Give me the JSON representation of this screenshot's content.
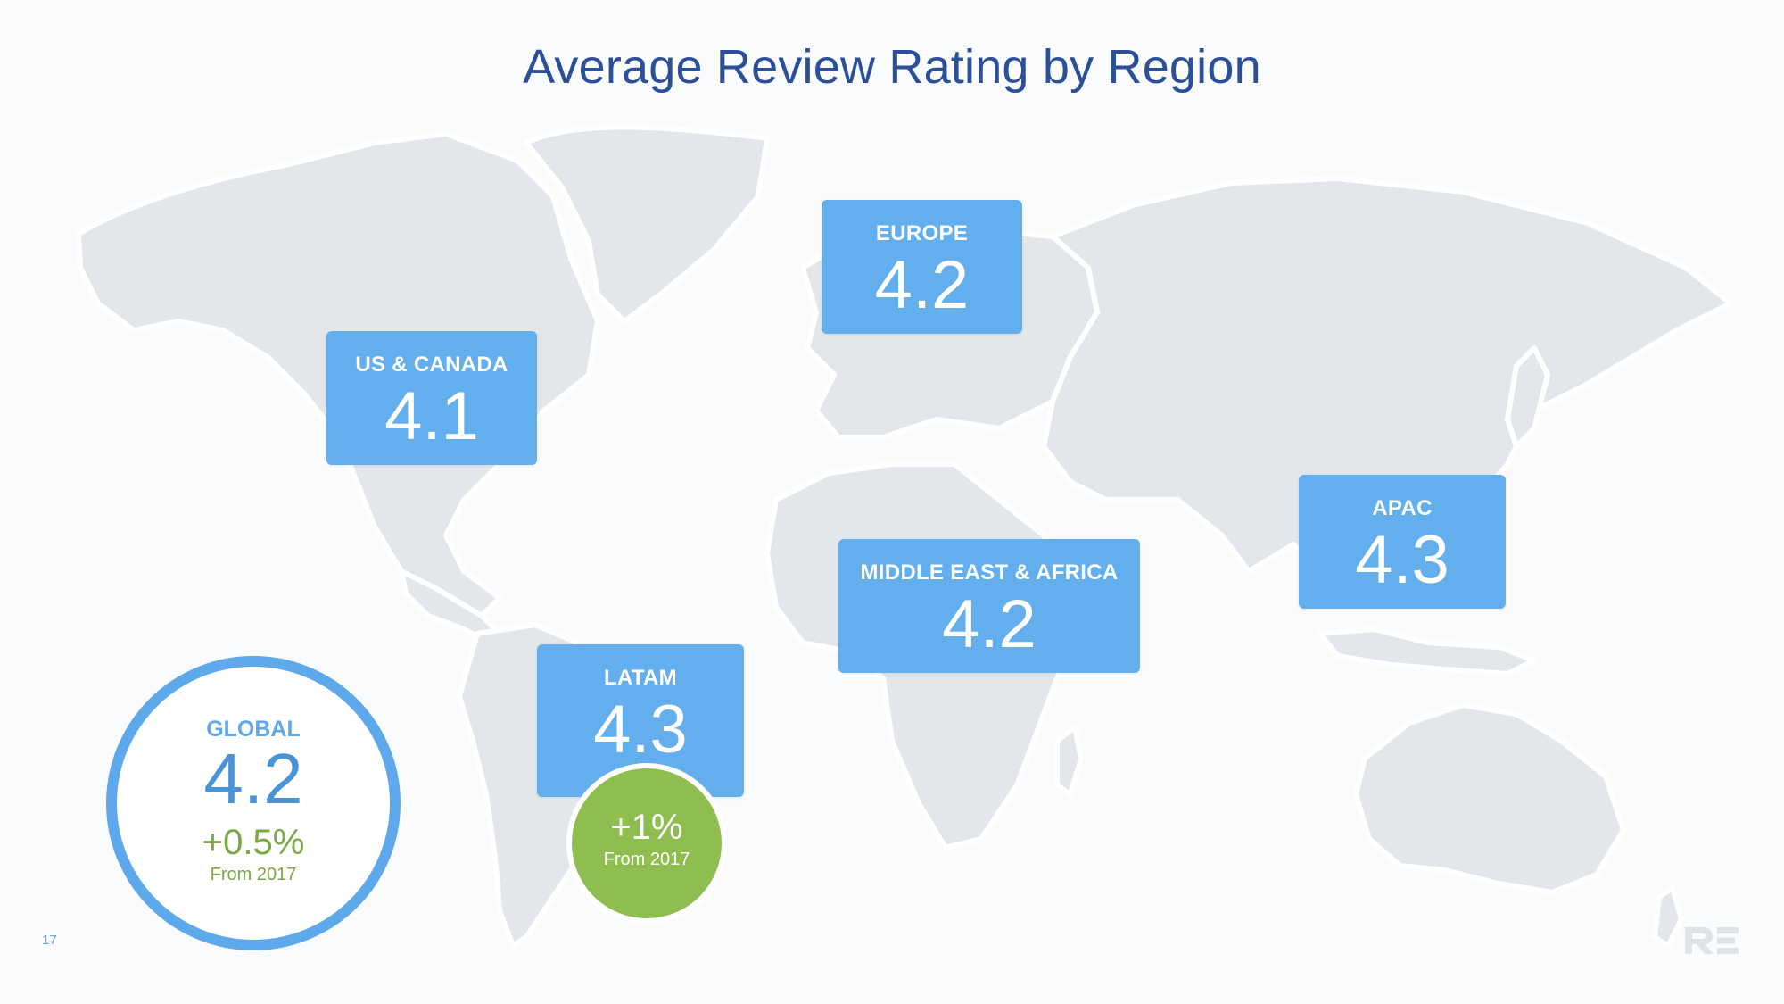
{
  "title": "Average Review Rating by Region",
  "regions": [
    {
      "name": "EUROPE",
      "rating": "4.2"
    },
    {
      "name": "US & CANADA",
      "rating": "4.1"
    },
    {
      "name": "APAC",
      "rating": "4.3"
    },
    {
      "name": "MIDDLE EAST & AFRICA",
      "rating": "4.2"
    },
    {
      "name": "LATAM",
      "rating": "4.3"
    }
  ],
  "global": {
    "name": "GLOBAL",
    "rating": "4.2",
    "change": "+0.5%",
    "change_note": "From 2017"
  },
  "latam_badge": {
    "change": "+1%",
    "change_note": "From 2017"
  },
  "page_number": "17",
  "logo_text": "RE",
  "colors": {
    "title": "#2b4f99",
    "region_box": "#63aeed",
    "global_ring": "#5ea9eb",
    "positive_change": "#8fbd4f",
    "map_land": "#e4e8ec"
  }
}
